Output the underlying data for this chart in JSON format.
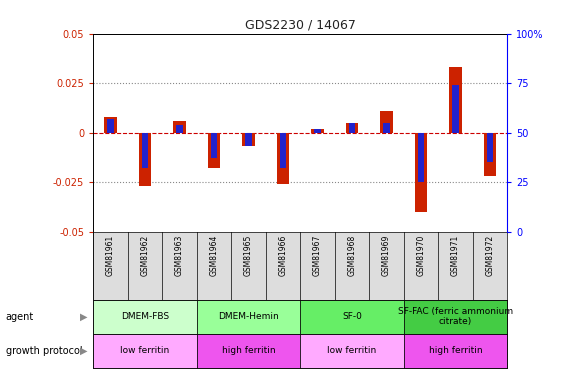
{
  "title": "GDS2230 / 14067",
  "samples": [
    "GSM81961",
    "GSM81962",
    "GSM81963",
    "GSM81964",
    "GSM81965",
    "GSM81966",
    "GSM81967",
    "GSM81968",
    "GSM81969",
    "GSM81970",
    "GSM81971",
    "GSM81972"
  ],
  "log10_ratio": [
    0.008,
    -0.027,
    0.006,
    -0.018,
    -0.007,
    -0.026,
    0.002,
    0.005,
    0.011,
    -0.04,
    0.033,
    -0.022
  ],
  "percentile_rank": [
    57,
    32,
    54,
    37,
    43,
    32,
    52,
    55,
    55,
    25,
    74,
    35
  ],
  "agent_groups": [
    {
      "label": "DMEM-FBS",
      "start": 0,
      "end": 3,
      "color": "#ccffcc"
    },
    {
      "label": "DMEM-Hemin",
      "start": 3,
      "end": 6,
      "color": "#99ff99"
    },
    {
      "label": "SF-0",
      "start": 6,
      "end": 9,
      "color": "#66ee66"
    },
    {
      "label": "SF-FAC (ferric ammonium\ncitrate)",
      "start": 9,
      "end": 12,
      "color": "#44cc44"
    }
  ],
  "growth_groups": [
    {
      "label": "low ferritin",
      "start": 0,
      "end": 3,
      "color": "#ffaaff"
    },
    {
      "label": "high ferritin",
      "start": 3,
      "end": 6,
      "color": "#ee55ee"
    },
    {
      "label": "low ferritin",
      "start": 6,
      "end": 9,
      "color": "#ffaaff"
    },
    {
      "label": "high ferritin",
      "start": 9,
      "end": 12,
      "color": "#ee55ee"
    }
  ],
  "red_bar_width": 0.35,
  "blue_bar_width": 0.18,
  "red_color": "#cc2200",
  "blue_color": "#2222cc",
  "ylim_left": [
    -0.05,
    0.05
  ],
  "ylim_right": [
    0,
    100
  ],
  "yticks_left": [
    -0.05,
    -0.025,
    0,
    0.025,
    0.05
  ],
  "yticks_right": [
    0,
    25,
    50,
    75,
    100
  ],
  "ytick_labels_left": [
    "-0.05",
    "-0.025",
    "0",
    "0.025",
    "0.05"
  ],
  "ytick_labels_right": [
    "0",
    "25",
    "50",
    "75",
    "100%"
  ],
  "grid_dotted_vals": [
    -0.025,
    0.025
  ],
  "zero_line_color": "#cc0000",
  "grid_color": "#888888",
  "background_color": "#ffffff",
  "plot_bg": "#ffffff",
  "label_area_bg": "#dddddd",
  "title_fontsize": 9,
  "tick_fontsize": 7,
  "bar_label_fontsize": 5.5,
  "annot_fontsize": 6.5,
  "legend_fontsize": 7
}
